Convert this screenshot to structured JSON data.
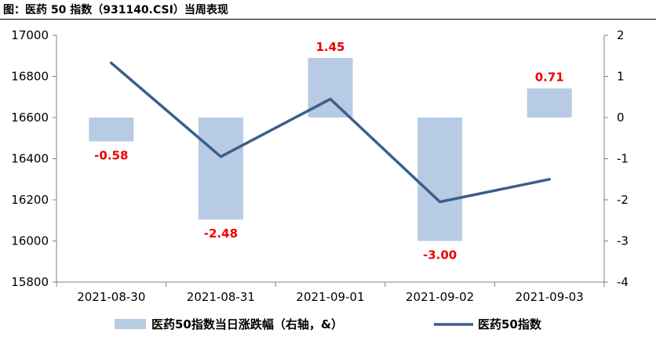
{
  "figure": {
    "title": "图：医药 50 指数（931140.CSI）当周表现"
  },
  "chart_data": {
    "type": "bar+line",
    "categories": [
      "2021-08-30",
      "2021-08-31",
      "2021-09-01",
      "2021-09-02",
      "2021-09-03"
    ],
    "left_axis": {
      "min": 15800,
      "max": 17000,
      "ticks": [
        15800,
        16000,
        16200,
        16400,
        16600,
        16800,
        17000
      ]
    },
    "right_axis": {
      "min": -4,
      "max": 2,
      "ticks": [
        -4,
        -3,
        -2,
        -1,
        0,
        1,
        2
      ]
    },
    "series": [
      {
        "name": "医药50指数当日涨跌幅（右轴，&）",
        "type": "bar",
        "axis": "right",
        "values": [
          -0.58,
          -2.48,
          1.45,
          -3.0,
          0.71
        ],
        "labels": [
          "-0.58",
          "-2.48",
          "1.45",
          "-3.00",
          "0.71"
        ]
      },
      {
        "name": "医药50指数",
        "type": "line",
        "axis": "left",
        "values": [
          16865,
          16410,
          16690,
          16190,
          16300
        ]
      }
    ],
    "grid": false,
    "legend_position": "bottom"
  },
  "colors": {
    "bar": "#b7cce4",
    "line": "#3b5f8a",
    "label": "#ee0000",
    "axis": "#808080"
  }
}
